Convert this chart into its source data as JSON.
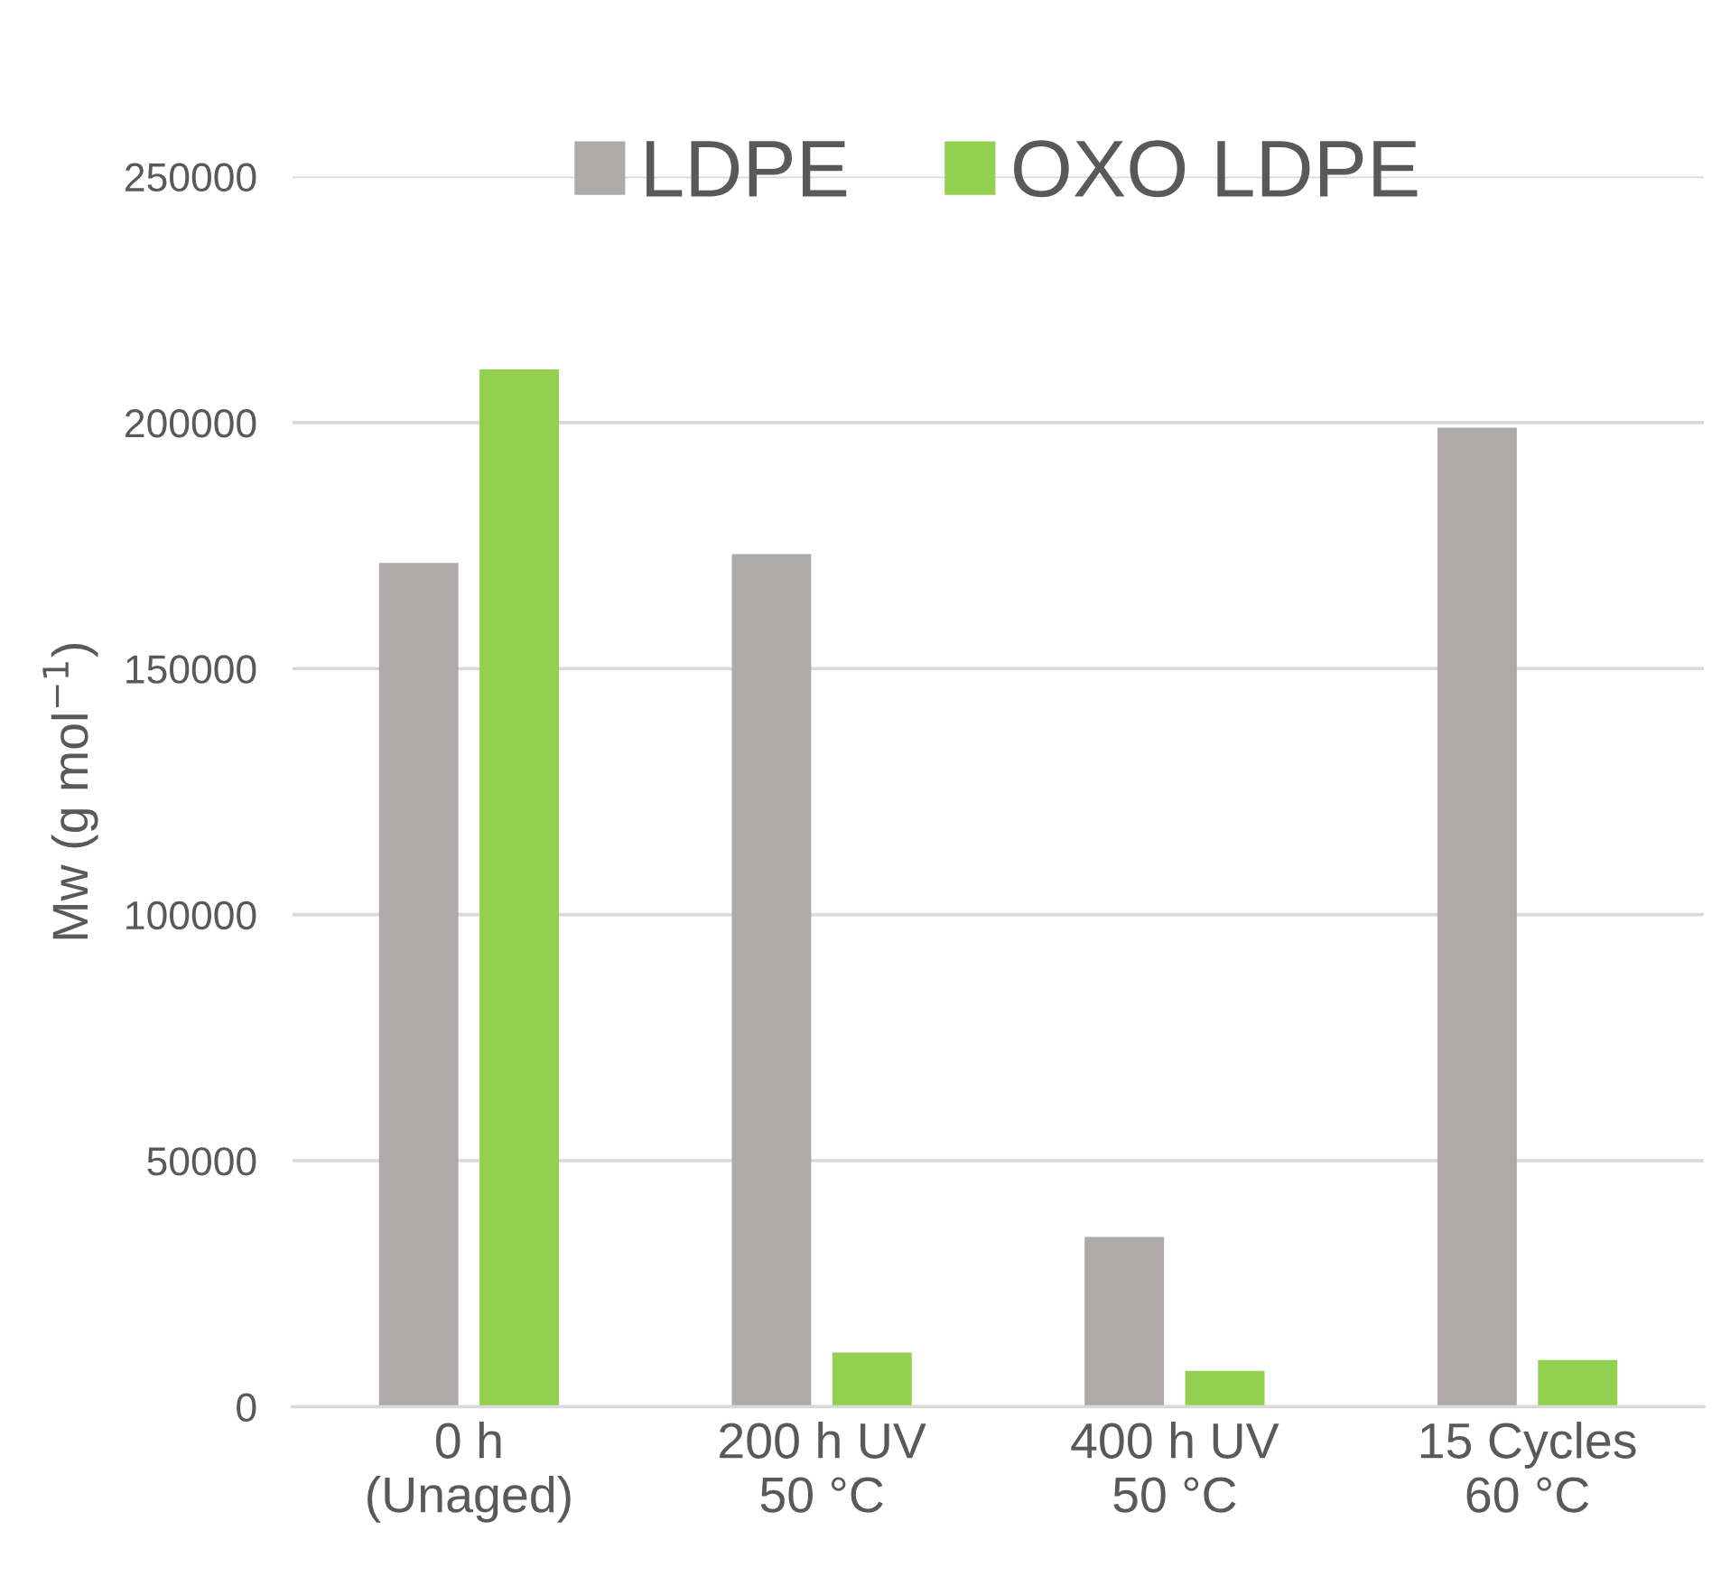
{
  "chart_data": {
    "type": "bar",
    "ylabel": "Mw (g mol$^{−1}$)",
    "categories": [
      "0 h\n(Unaged)",
      "200 h UV\n50 °C",
      "400 h UV\n50 °C",
      "15 Cycles\n60 °C"
    ],
    "series": [
      {
        "name": "LDPE",
        "color": "#aeaaaa",
        "values": [
          171500,
          173300,
          34500,
          199000
        ]
      },
      {
        "name": "OXO LDPE",
        "color": "#92d050",
        "values": [
          210800,
          11000,
          7300,
          9500
        ]
      }
    ],
    "ylim": [
      0,
      250000
    ],
    "yticks": [
      0,
      50000,
      100000,
      150000,
      200000,
      250000
    ],
    "grid": "y",
    "legend": "top"
  }
}
